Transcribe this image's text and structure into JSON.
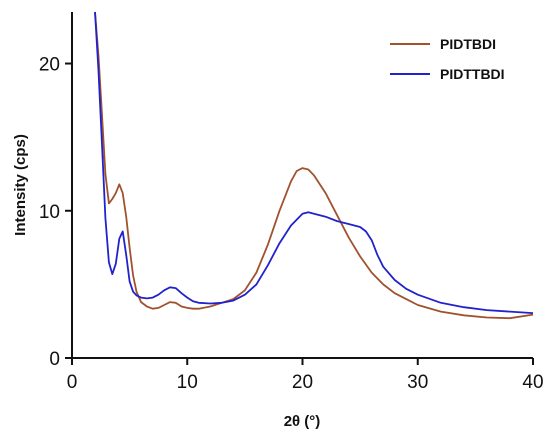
{
  "chart_data": {
    "type": "line",
    "xlabel": "2θ (°)",
    "ylabel": "Intensity (cps)",
    "xlim": [
      0,
      40
    ],
    "ylim": [
      0,
      23.5
    ],
    "xticks": [
      0,
      10,
      20,
      30,
      40
    ],
    "yticks": [
      0,
      10,
      20
    ],
    "grid": false,
    "legend_position": "top-right",
    "series": [
      {
        "name": "PIDTBDI",
        "color": "#a0522d",
        "x": [
          2.0,
          2.3,
          2.6,
          2.9,
          3.2,
          3.5,
          3.8,
          4.1,
          4.4,
          4.7,
          5.0,
          5.3,
          5.6,
          6.0,
          6.5,
          7.0,
          7.5,
          8.0,
          8.5,
          9.0,
          9.5,
          10.0,
          10.5,
          11.0,
          12.0,
          13.0,
          14.0,
          15.0,
          16.0,
          17.0,
          18.0,
          19.0,
          19.5,
          20.0,
          20.5,
          21.0,
          22.0,
          23.0,
          24.0,
          25.0,
          26.0,
          27.0,
          28.0,
          29.0,
          30.0,
          32.0,
          34.0,
          36.0,
          38.0,
          40.0
        ],
        "values": [
          23.5,
          20.5,
          16.5,
          12.5,
          10.5,
          10.8,
          11.2,
          11.8,
          11.2,
          9.6,
          7.5,
          5.6,
          4.5,
          3.8,
          3.5,
          3.35,
          3.4,
          3.6,
          3.8,
          3.75,
          3.5,
          3.4,
          3.35,
          3.35,
          3.5,
          3.75,
          4.0,
          4.6,
          5.8,
          7.7,
          10.0,
          12.0,
          12.7,
          12.9,
          12.8,
          12.4,
          11.2,
          9.7,
          8.2,
          6.9,
          5.8,
          5.0,
          4.4,
          4.0,
          3.6,
          3.15,
          2.9,
          2.75,
          2.7,
          2.95
        ]
      },
      {
        "name": "PIDTTBDI",
        "color": "#2222cc",
        "x": [
          2.0,
          2.3,
          2.6,
          2.9,
          3.2,
          3.5,
          3.8,
          4.1,
          4.4,
          4.7,
          5.0,
          5.3,
          5.6,
          6.0,
          6.5,
          7.0,
          7.5,
          8.0,
          8.5,
          9.0,
          9.5,
          10.0,
          10.5,
          11.0,
          12.0,
          13.0,
          14.0,
          15.0,
          16.0,
          17.0,
          18.0,
          19.0,
          20.0,
          20.5,
          21.0,
          22.0,
          23.0,
          24.0,
          25.0,
          25.5,
          26.0,
          26.5,
          27.0,
          28.0,
          29.0,
          30.0,
          32.0,
          34.0,
          36.0,
          38.0,
          40.0
        ],
        "values": [
          23.5,
          19.5,
          14.5,
          9.5,
          6.5,
          5.7,
          6.4,
          8.1,
          8.6,
          7.0,
          5.2,
          4.5,
          4.25,
          4.1,
          4.05,
          4.1,
          4.3,
          4.6,
          4.8,
          4.75,
          4.4,
          4.1,
          3.85,
          3.75,
          3.7,
          3.75,
          3.9,
          4.3,
          5.0,
          6.3,
          7.8,
          9.0,
          9.8,
          9.9,
          9.8,
          9.6,
          9.3,
          9.1,
          8.9,
          8.6,
          8.0,
          7.0,
          6.2,
          5.3,
          4.7,
          4.3,
          3.75,
          3.45,
          3.25,
          3.15,
          3.05
        ]
      }
    ]
  }
}
